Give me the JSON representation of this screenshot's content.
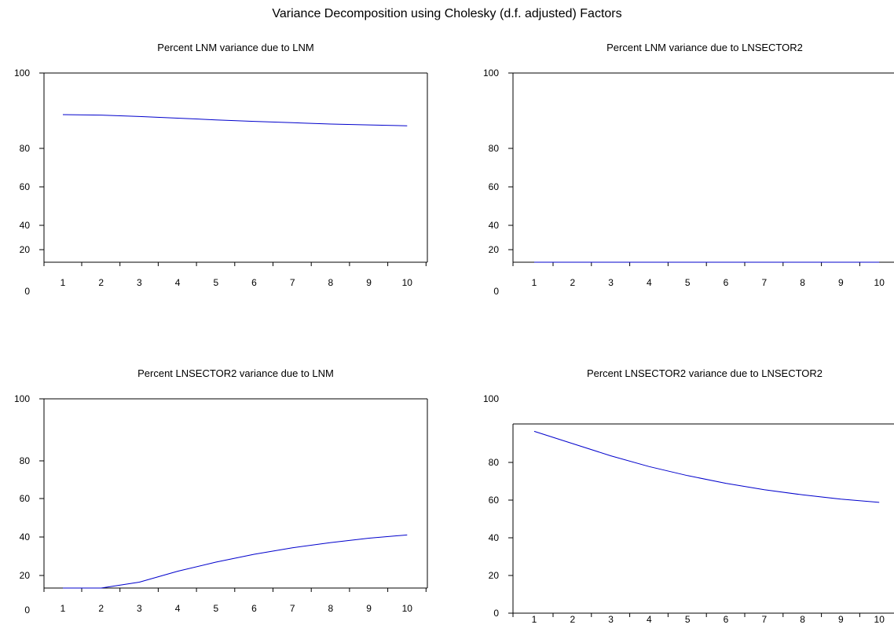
{
  "figure": {
    "title": "Variance Decomposition using Cholesky (d.f. adjusted) Factors"
  },
  "chart_data": [
    {
      "type": "line",
      "title": "Percent LNM variance due to LNM",
      "x": [
        1,
        2,
        3,
        4,
        5,
        6,
        7,
        8,
        9,
        10
      ],
      "series": [
        {
          "values": [
            100.0,
            99.7,
            98.9,
            97.9,
            96.9,
            96.0,
            95.2,
            94.4,
            93.9,
            93.4
          ],
          "color": "#0000cc"
        }
      ],
      "xticks": [
        "1",
        "2",
        "3",
        "4",
        "5",
        "6",
        "7",
        "8",
        "9",
        "10"
      ],
      "yticks": [
        "0",
        "20",
        "40",
        "60",
        "80",
        "100"
      ],
      "ylim": [
        0,
        100
      ],
      "grid": false
    },
    {
      "type": "line",
      "title": "Percent LNM variance due to LNSECTOR2",
      "x": [
        1,
        2,
        3,
        4,
        5,
        6,
        7,
        8,
        9,
        10
      ],
      "series": [
        {
          "values": [
            0.0,
            0.4,
            1.3,
            2.4,
            3.5,
            4.5,
            5.3,
            6.0,
            6.6,
            7.0
          ],
          "color": "#0000cc"
        }
      ],
      "xticks": [
        "1",
        "2",
        "3",
        "4",
        "5",
        "6",
        "7",
        "8",
        "9",
        "10"
      ],
      "yticks": [
        "0",
        "20",
        "40",
        "60",
        "80",
        "100"
      ],
      "ylim": [
        0,
        100
      ],
      "grid": false
    },
    {
      "type": "line",
      "title": "Percent LNSECTOR2 variance due to LNM",
      "x": [
        1,
        2,
        3,
        4,
        5,
        6,
        7,
        8,
        9,
        10
      ],
      "series": [
        {
          "values": [
            3.5,
            10.0,
            16.5,
            22.2,
            27.0,
            31.1,
            34.5,
            37.2,
            39.5,
            41.2
          ],
          "color": "#0000cc"
        }
      ],
      "xticks": [
        "1",
        "2",
        "3",
        "4",
        "5",
        "6",
        "7",
        "8",
        "9",
        "10"
      ],
      "yticks": [
        "0",
        "20",
        "40",
        "60",
        "80",
        "100"
      ],
      "ylim": [
        0,
        100
      ],
      "grid": false
    },
    {
      "type": "line",
      "title": "Percent LNSECTOR2 variance due to LNSECTOR2",
      "x": [
        1,
        2,
        3,
        4,
        5,
        6,
        7,
        8,
        9,
        10
      ],
      "series": [
        {
          "values": [
            96.5,
            90.0,
            83.5,
            77.8,
            73.0,
            68.9,
            65.5,
            62.8,
            60.5,
            58.8
          ],
          "color": "#0000cc"
        }
      ],
      "xticks": [
        "1",
        "2",
        "3",
        "4",
        "5",
        "6",
        "7",
        "8",
        "9",
        "10"
      ],
      "yticks": [
        "0",
        "20",
        "40",
        "60",
        "80",
        "100"
      ],
      "ylim": [
        0,
        100
      ],
      "grid": false
    }
  ]
}
